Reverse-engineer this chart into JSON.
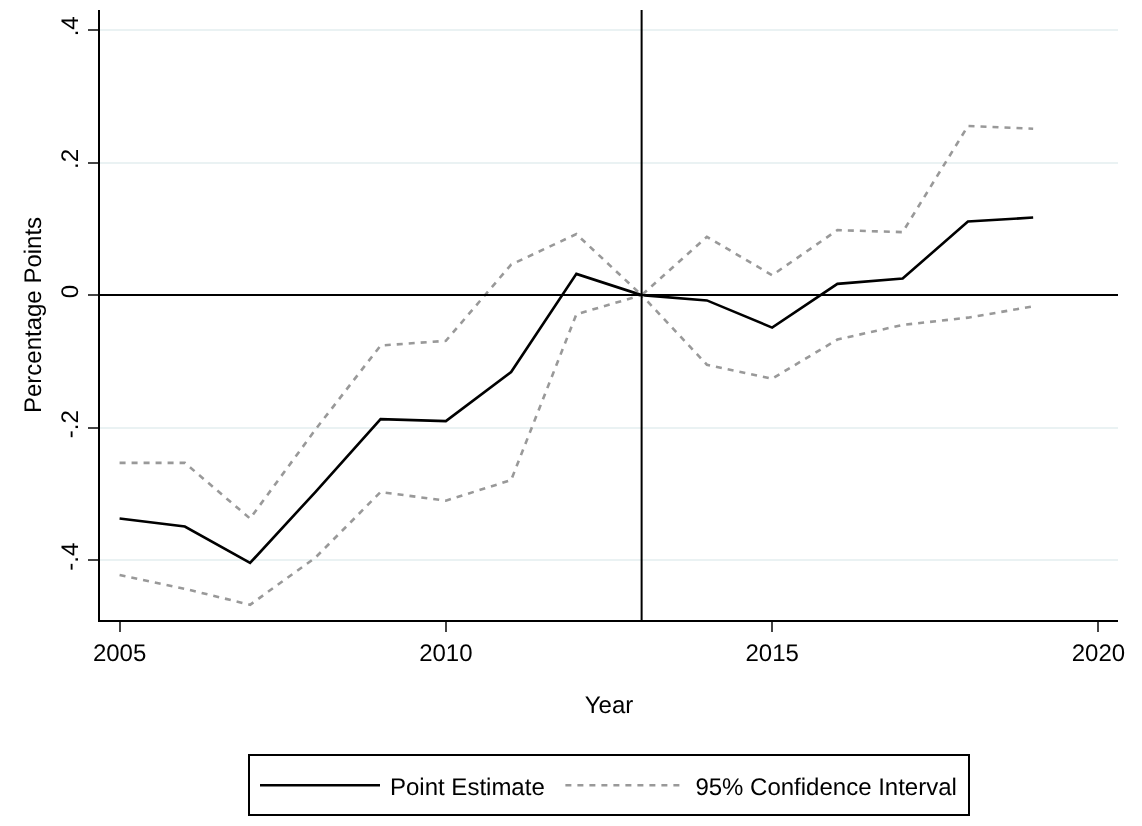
{
  "chart_data": {
    "type": "line",
    "xlabel": "Year",
    "ylabel": "Percentage Points",
    "x": [
      2005,
      2006,
      2007,
      2008,
      2009,
      2010,
      2011,
      2012,
      2013,
      2014,
      2015,
      2016,
      2017,
      2018,
      2019
    ],
    "series": [
      {
        "name": "Point Estimate",
        "color": "#000000",
        "line_style": "solid",
        "values": [
          -0.337,
          -0.349,
          -0.404,
          -0.297,
          -0.187,
          -0.19,
          -0.116,
          0.032,
          0,
          -0.008,
          -0.049,
          0.017,
          0.025,
          0.111,
          0.117
        ]
      },
      {
        "name": "95% Confidence Interval",
        "color": "#999999",
        "line_style": "dotted",
        "values": [
          -0.253,
          -0.253,
          -0.337,
          -0.203,
          -0.076,
          -0.069,
          0.046,
          0.092,
          0,
          0.088,
          0.03,
          0.098,
          0.095,
          0.255,
          0.251
        ]
      },
      {
        "color": "#999999",
        "line_style": "dotted",
        "values": [
          -0.422,
          -0.443,
          -0.467,
          -0.396,
          -0.297,
          -0.31,
          -0.279,
          -0.029,
          0,
          -0.105,
          -0.126,
          -0.067,
          -0.045,
          -0.034,
          -0.017
        ]
      }
    ],
    "xlim": [
      2004.7,
      2020.3
    ],
    "xticks": [
      2005,
      2010,
      2015,
      2020
    ],
    "ylim": [
      -0.49,
      0.43
    ],
    "yticks": [
      {
        "value": -0.4,
        "label": "-.4"
      },
      {
        "value": -0.2,
        "label": "-.2"
      },
      0,
      {
        "value": 0.2,
        "label": ".2"
      },
      {
        "value": 0.4,
        "label": ".4"
      }
    ],
    "ref_lines": [
      {
        "axis": "y",
        "value": 0,
        "color": "#000000"
      },
      {
        "axis": "x",
        "value": 2013,
        "color": "#000000"
      }
    ],
    "grid": "y",
    "legend": "bottom",
    "marker": "none"
  }
}
